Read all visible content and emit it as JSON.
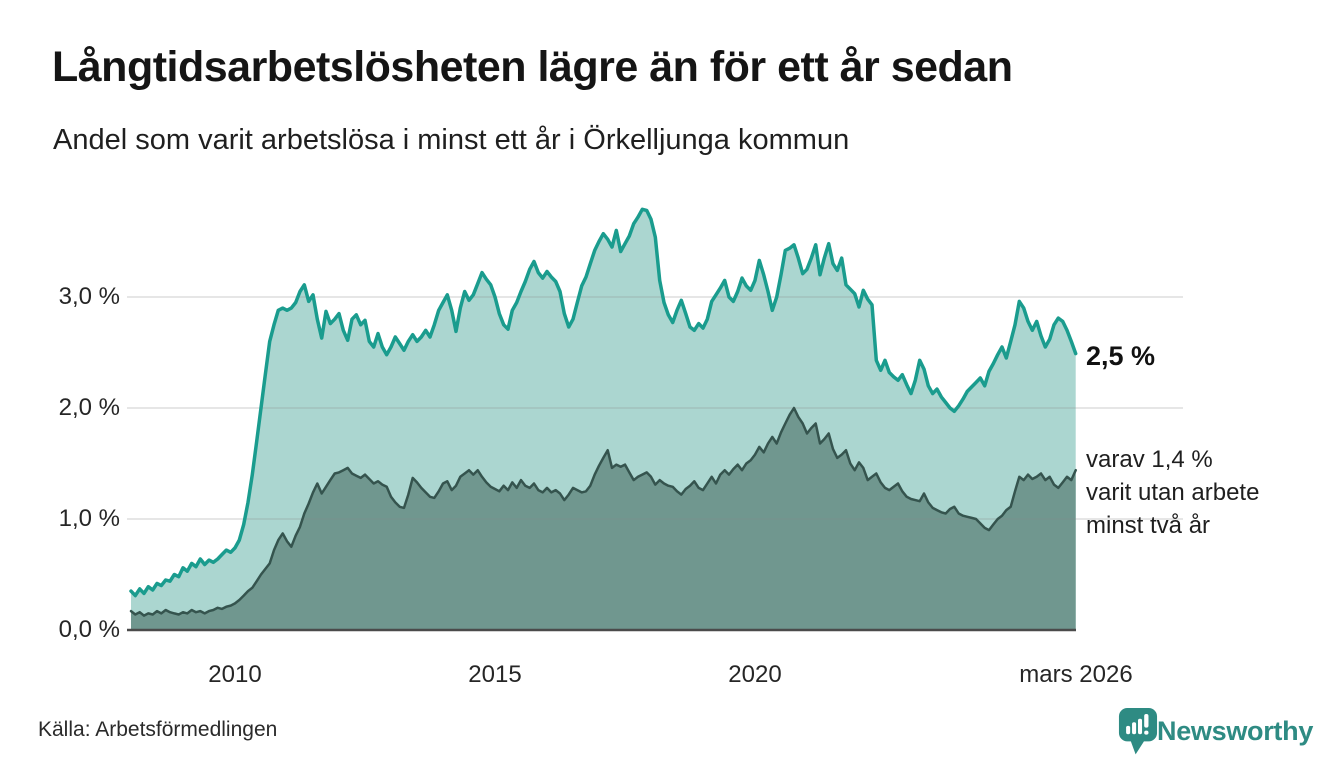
{
  "header": {
    "title": "Långtidsarbetslösheten lägre än för ett år sedan",
    "subtitle": "Andel som varit arbetslösa i minst ett år i Örkelljunga kommun"
  },
  "annotations": {
    "end_value_primary": "2,5 %",
    "secondary_line1": "varav 1,4 %",
    "secondary_line2": "varit utan arbete",
    "secondary_line3": "minst två år"
  },
  "footer": {
    "source": "Källa: Arbetsförmedlingen",
    "logo_text": "Newsworthy"
  },
  "colors": {
    "series1_stroke": "#1a9c8e",
    "series1_fill": "#abd6d0",
    "series2_stroke": "#35544e",
    "series2_fill": "#70978f",
    "gridline": "#d9d9d9",
    "axis": "#4b4b4b",
    "logo_teal": "#2e8b83",
    "text": "#1a1a1a"
  },
  "chart_data": {
    "type": "area",
    "title": "Långtidsarbetslösheten lägre än för ett år sedan",
    "subtitle": "Andel som varit arbetslösa i minst ett år i Örkelljunga kommun",
    "xlabel": "",
    "ylabel": "",
    "frequency": "monthly",
    "x_start": "2008-01",
    "x_end": "2026-03",
    "xlim_years": [
      2007.92,
      2026.25
    ],
    "ylim": [
      0,
      3.9
    ],
    "grid": true,
    "legend_position": "right-annotations",
    "x_ticks": [
      {
        "label": "2010",
        "year": 2010
      },
      {
        "label": "2015",
        "year": 2015
      },
      {
        "label": "2020",
        "year": 2020
      },
      {
        "label": "mars 2026",
        "year": 2026.17
      }
    ],
    "y_ticks": [
      {
        "label": "3,0 %",
        "value": 3
      },
      {
        "label": "2,0 %",
        "value": 2
      },
      {
        "label": "1,0 %",
        "value": 1
      },
      {
        "label": "0,0 %",
        "value": 0
      }
    ],
    "series": [
      {
        "name": "Andel arbetslösa minst ett år",
        "end_value_label": "2,5 %",
        "stroke": "#1a9c8e",
        "fill": "#abd6d0",
        "values": [
          0.35,
          0.31,
          0.37,
          0.33,
          0.39,
          0.36,
          0.42,
          0.4,
          0.45,
          0.44,
          0.5,
          0.48,
          0.56,
          0.53,
          0.6,
          0.57,
          0.64,
          0.59,
          0.63,
          0.61,
          0.64,
          0.68,
          0.72,
          0.7,
          0.74,
          0.81,
          0.95,
          1.15,
          1.4,
          1.7,
          2.0,
          2.3,
          2.6,
          2.75,
          2.88,
          2.9,
          2.88,
          2.9,
          2.95,
          3.05,
          3.11,
          2.96,
          3.02,
          2.8,
          2.63,
          2.87,
          2.76,
          2.8,
          2.85,
          2.7,
          2.61,
          2.8,
          2.84,
          2.75,
          2.79,
          2.6,
          2.55,
          2.67,
          2.55,
          2.48,
          2.55,
          2.64,
          2.58,
          2.52,
          2.6,
          2.66,
          2.6,
          2.64,
          2.7,
          2.64,
          2.75,
          2.88,
          2.95,
          3.02,
          2.88,
          2.69,
          2.9,
          3.05,
          2.97,
          3.02,
          3.12,
          3.22,
          3.16,
          3.11,
          3.0,
          2.85,
          2.75,
          2.71,
          2.88,
          2.95,
          3.05,
          3.14,
          3.25,
          3.32,
          3.22,
          3.17,
          3.23,
          3.18,
          3.14,
          3.05,
          2.85,
          2.73,
          2.8,
          2.95,
          3.1,
          3.18,
          3.3,
          3.42,
          3.5,
          3.57,
          3.52,
          3.45,
          3.6,
          3.41,
          3.48,
          3.55,
          3.66,
          3.72,
          3.79,
          3.78,
          3.7,
          3.54,
          3.15,
          2.95,
          2.84,
          2.77,
          2.88,
          2.97,
          2.85,
          2.73,
          2.7,
          2.76,
          2.72,
          2.8,
          2.96,
          3.02,
          3.08,
          3.15,
          3.0,
          2.96,
          3.05,
          3.17,
          3.1,
          3.06,
          3.15,
          3.33,
          3.2,
          3.05,
          2.88,
          3.0,
          3.2,
          3.42,
          3.44,
          3.47,
          3.35,
          3.21,
          3.25,
          3.35,
          3.47,
          3.2,
          3.35,
          3.48,
          3.3,
          3.24,
          3.35,
          3.11,
          3.07,
          3.03,
          2.91,
          3.06,
          2.98,
          2.93,
          2.43,
          2.34,
          2.43,
          2.32,
          2.28,
          2.25,
          2.3,
          2.21,
          2.13,
          2.25,
          2.43,
          2.35,
          2.2,
          2.13,
          2.17,
          2.1,
          2.05,
          2.0,
          1.97,
          2.02,
          2.08,
          2.15,
          2.19,
          2.23,
          2.27,
          2.2,
          2.33,
          2.4,
          2.48,
          2.55,
          2.45,
          2.6,
          2.75,
          2.96,
          2.9,
          2.78,
          2.7,
          2.78,
          2.65,
          2.55,
          2.62,
          2.75,
          2.81,
          2.78,
          2.7,
          2.6,
          2.49
        ]
      },
      {
        "name": "varav arbetslösa minst två år",
        "end_value_label": "1,4 %",
        "stroke": "#35544e",
        "fill": "#70978f",
        "values": [
          0.17,
          0.14,
          0.16,
          0.13,
          0.15,
          0.14,
          0.17,
          0.15,
          0.18,
          0.16,
          0.15,
          0.14,
          0.16,
          0.15,
          0.18,
          0.16,
          0.17,
          0.15,
          0.17,
          0.18,
          0.2,
          0.19,
          0.21,
          0.22,
          0.24,
          0.27,
          0.31,
          0.35,
          0.38,
          0.44,
          0.5,
          0.55,
          0.6,
          0.72,
          0.81,
          0.87,
          0.8,
          0.75,
          0.85,
          0.93,
          1.05,
          1.14,
          1.24,
          1.32,
          1.23,
          1.29,
          1.35,
          1.41,
          1.42,
          1.44,
          1.46,
          1.41,
          1.39,
          1.37,
          1.4,
          1.36,
          1.32,
          1.34,
          1.31,
          1.29,
          1.2,
          1.15,
          1.11,
          1.1,
          1.22,
          1.37,
          1.33,
          1.28,
          1.24,
          1.2,
          1.19,
          1.25,
          1.32,
          1.34,
          1.26,
          1.3,
          1.38,
          1.41,
          1.44,
          1.4,
          1.44,
          1.38,
          1.33,
          1.29,
          1.27,
          1.25,
          1.3,
          1.26,
          1.33,
          1.28,
          1.35,
          1.3,
          1.28,
          1.32,
          1.26,
          1.24,
          1.28,
          1.24,
          1.26,
          1.23,
          1.17,
          1.22,
          1.28,
          1.26,
          1.24,
          1.25,
          1.3,
          1.4,
          1.48,
          1.55,
          1.62,
          1.46,
          1.49,
          1.47,
          1.49,
          1.42,
          1.35,
          1.38,
          1.4,
          1.42,
          1.38,
          1.31,
          1.35,
          1.32,
          1.3,
          1.29,
          1.25,
          1.22,
          1.27,
          1.3,
          1.34,
          1.28,
          1.26,
          1.32,
          1.38,
          1.32,
          1.4,
          1.44,
          1.4,
          1.45,
          1.49,
          1.44,
          1.5,
          1.53,
          1.58,
          1.65,
          1.6,
          1.68,
          1.74,
          1.68,
          1.78,
          1.86,
          1.94,
          2.0,
          1.92,
          1.86,
          1.77,
          1.82,
          1.86,
          1.68,
          1.72,
          1.77,
          1.63,
          1.55,
          1.58,
          1.62,
          1.5,
          1.44,
          1.51,
          1.46,
          1.35,
          1.38,
          1.41,
          1.33,
          1.28,
          1.26,
          1.29,
          1.32,
          1.25,
          1.2,
          1.18,
          1.17,
          1.16,
          1.23,
          1.15,
          1.1,
          1.08,
          1.06,
          1.05,
          1.09,
          1.11,
          1.05,
          1.03,
          1.02,
          1.01,
          1.0,
          0.96,
          0.92,
          0.9,
          0.95,
          1.0,
          1.03,
          1.08,
          1.11,
          1.25,
          1.38,
          1.35,
          1.4,
          1.36,
          1.38,
          1.41,
          1.35,
          1.38,
          1.31,
          1.28,
          1.33,
          1.38,
          1.35,
          1.44
        ]
      }
    ]
  }
}
